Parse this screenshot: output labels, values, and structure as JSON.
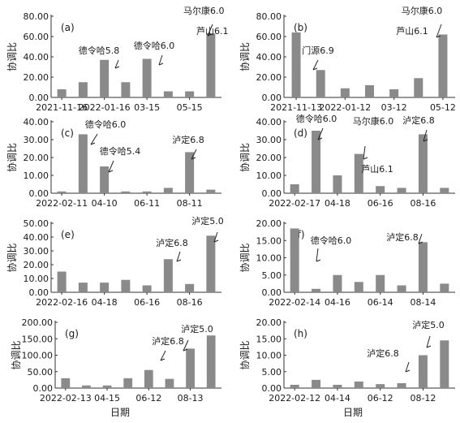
{
  "figure": {
    "xlabel_left": "日期",
    "xlabel_right": "日期"
  },
  "chart_data": [
    {
      "panel": "(a)",
      "type": "bar",
      "ylabel": "协调比",
      "ylim": [
        0,
        80
      ],
      "yticks": [
        "0.00",
        "20.00",
        "40.00",
        "60.00",
        "80.00"
      ],
      "ytick_values": [
        0,
        20,
        40,
        60,
        80
      ],
      "xticks": [
        "2021-11-16",
        "2022-01-16",
        "03-15",
        "05-15"
      ],
      "xtick_index": [
        0,
        2,
        4,
        6
      ],
      "values": [
        8,
        15,
        37,
        15,
        38,
        6,
        6,
        63
      ],
      "annotations": [
        {
          "text": "马尔康6.0",
          "bar": 7
        },
        {
          "text": "芦山6.1",
          "bar": 7
        },
        {
          "text": "德令哈5.8",
          "bar": 2
        },
        {
          "text": "德令哈6.0",
          "bar": 4
        }
      ]
    },
    {
      "panel": "(b)",
      "type": "bar",
      "ylabel": "协调比",
      "ylim": [
        0,
        80
      ],
      "yticks": [
        "0.00",
        "20.00",
        "40.00",
        "60.00",
        "80.00"
      ],
      "ytick_values": [
        0,
        20,
        40,
        60,
        80
      ],
      "xticks": [
        "2021-11-13",
        "2022-01-12",
        "03-12",
        "05-12"
      ],
      "xtick_index": [
        0,
        2,
        4,
        6
      ],
      "values": [
        64,
        27,
        9,
        12,
        8,
        19,
        62
      ],
      "annotations": [
        {
          "text": "马尔康6.0",
          "bar": 6
        },
        {
          "text": "芦山6.1",
          "bar": 6
        },
        {
          "text": "门源6.9",
          "bar": 1
        }
      ]
    },
    {
      "panel": "(c)",
      "type": "bar",
      "ylabel": "协调比",
      "ylim": [
        0,
        40
      ],
      "yticks": [
        "0.00",
        "10.00",
        "20.00",
        "30.00",
        "40.00"
      ],
      "ytick_values": [
        0,
        10,
        20,
        30,
        40
      ],
      "xticks": [
        "2022-02-11",
        "04-10",
        "06-11",
        "08-11"
      ],
      "xtick_index": [
        0,
        2,
        4,
        6
      ],
      "values": [
        1,
        33,
        15,
        1,
        1,
        3,
        23,
        2
      ],
      "annotations": [
        {
          "text": "德令哈6.0",
          "bar": 1
        },
        {
          "text": "德令哈5.4",
          "bar": 2
        },
        {
          "text": "泸定6.8",
          "bar": 6
        }
      ]
    },
    {
      "panel": "(d)",
      "type": "bar",
      "ylabel": "协调比",
      "ylim": [
        0,
        40
      ],
      "yticks": [
        "0.00",
        "10.00",
        "20.00",
        "30.00",
        "40.00"
      ],
      "ytick_values": [
        0,
        10,
        20,
        30,
        40
      ],
      "xticks": [
        "2022-02-17",
        "04-18",
        "06-16",
        "08-16"
      ],
      "xtick_index": [
        0,
        2,
        4,
        6
      ],
      "values": [
        5,
        35,
        10,
        22,
        4,
        3,
        33,
        3
      ],
      "annotations": [
        {
          "text": "德令哈6.0",
          "bar": 1
        },
        {
          "text": "马尔康6.0",
          "bar": 3
        },
        {
          "text": "芦山6.1",
          "bar": 3
        },
        {
          "text": "泸定6.8",
          "bar": 6
        }
      ]
    },
    {
      "panel": "(e)",
      "type": "bar",
      "ylabel": "协调比",
      "ylim": [
        0,
        50
      ],
      "yticks": [
        "0.00",
        "10.00",
        "20.00",
        "30.00",
        "40.00",
        "50.00"
      ],
      "ytick_values": [
        0,
        10,
        20,
        30,
        40,
        50
      ],
      "xticks": [
        "2022-02-16",
        "04-18",
        "06-16",
        "08-16"
      ],
      "xtick_index": [
        0,
        2,
        4,
        6
      ],
      "values": [
        15,
        7,
        7,
        9,
        5,
        24,
        6,
        41
      ],
      "annotations": [
        {
          "text": "泸定5.0",
          "bar": 7
        },
        {
          "text": "泸定6.8",
          "bar": 5
        }
      ]
    },
    {
      "panel": "(f)",
      "type": "bar",
      "ylabel": "协调比",
      "ylim": [
        0,
        20
      ],
      "yticks": [
        "0.00",
        "5.00",
        "10.00",
        "15.00",
        "20.00"
      ],
      "ytick_values": [
        0,
        5,
        10,
        15,
        20
      ],
      "xticks": [
        "2022-02-14",
        "04-16",
        "06-14",
        "08-14"
      ],
      "xtick_index": [
        0,
        2,
        4,
        6
      ],
      "values": [
        18.5,
        1,
        5,
        3,
        5,
        2,
        14.5,
        2.5
      ],
      "annotations": [
        {
          "text": "德令哈6.0",
          "bar": 1
        },
        {
          "text": "泸定6.8",
          "bar": 6
        }
      ]
    },
    {
      "panel": "(g)",
      "type": "bar",
      "ylabel": "协调比",
      "ylim": [
        0,
        200
      ],
      "yticks": [
        "0.00",
        "50.00",
        "100.00",
        "150.00",
        "200.00"
      ],
      "ytick_values": [
        0,
        50,
        100,
        150,
        200
      ],
      "xticks": [
        "2022-02-13",
        "04-15",
        "06-12",
        "08-13"
      ],
      "xtick_index": [
        0,
        2,
        4,
        6
      ],
      "values": [
        30,
        8,
        8,
        30,
        55,
        28,
        120,
        160
      ],
      "annotations": [
        {
          "text": "泸定5.0",
          "bar": 7
        },
        {
          "text": "泸定6.8",
          "bar": 6
        }
      ]
    },
    {
      "panel": "(h)",
      "type": "bar",
      "ylabel": "协调比",
      "ylim": [
        0,
        20
      ],
      "yticks": [
        "0.00",
        "5.00",
        "10.00",
        "15.00",
        "20.00"
      ],
      "ytick_values": [
        0,
        5,
        10,
        15,
        20
      ],
      "xticks": [
        "2022-02-12",
        "04-14",
        "06-12",
        "08-12"
      ],
      "xtick_index": [
        0,
        2,
        4,
        6
      ],
      "values": [
        1,
        2.5,
        1,
        2,
        1.2,
        1.5,
        10,
        14.5
      ],
      "annotations": [
        {
          "text": "泸定5.0",
          "bar": 7
        },
        {
          "text": "泸定6.8",
          "bar": 6
        }
      ]
    }
  ]
}
